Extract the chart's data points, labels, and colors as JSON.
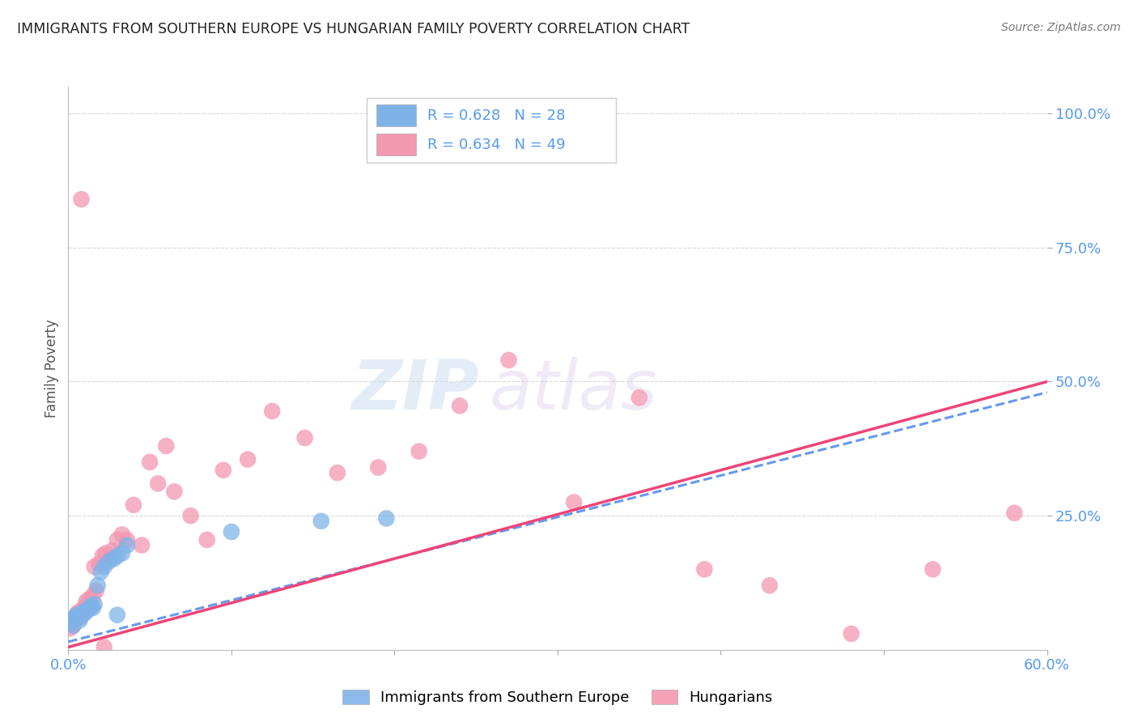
{
  "title": "IMMIGRANTS FROM SOUTHERN EUROPE VS HUNGARIAN FAMILY POVERTY CORRELATION CHART",
  "source": "Source: ZipAtlas.com",
  "ylabel": "Family Poverty",
  "ytick_labels": [
    "100.0%",
    "75.0%",
    "50.0%",
    "25.0%"
  ],
  "ytick_values": [
    1.0,
    0.75,
    0.5,
    0.25
  ],
  "xlim": [
    0.0,
    0.6
  ],
  "ylim": [
    0.0,
    1.05
  ],
  "legend_r_blue": "R = 0.628",
  "legend_n_blue": "N = 28",
  "legend_r_pink": "R = 0.634",
  "legend_n_pink": "N = 49",
  "legend_label_blue": "Immigrants from Southern Europe",
  "legend_label_pink": "Hungarians",
  "blue_color": "#7fb3e8",
  "pink_color": "#f497b0",
  "watermark_zip": "ZIP",
  "watermark_atlas": "atlas",
  "blue_scatter_x": [
    0.001,
    0.002,
    0.003,
    0.004,
    0.005,
    0.006,
    0.007,
    0.008,
    0.009,
    0.01,
    0.011,
    0.012,
    0.013,
    0.014,
    0.015,
    0.016,
    0.018,
    0.02,
    0.022,
    0.025,
    0.028,
    0.03,
    0.033,
    0.036,
    0.1,
    0.155,
    0.195,
    0.03
  ],
  "blue_scatter_y": [
    0.05,
    0.055,
    0.045,
    0.06,
    0.065,
    0.06,
    0.055,
    0.065,
    0.07,
    0.068,
    0.072,
    0.075,
    0.078,
    0.082,
    0.078,
    0.085,
    0.12,
    0.145,
    0.155,
    0.165,
    0.17,
    0.175,
    0.18,
    0.195,
    0.22,
    0.24,
    0.245,
    0.065
  ],
  "pink_scatter_x": [
    0.001,
    0.002,
    0.003,
    0.004,
    0.005,
    0.006,
    0.007,
    0.008,
    0.009,
    0.01,
    0.011,
    0.013,
    0.015,
    0.017,
    0.019,
    0.021,
    0.023,
    0.025,
    0.027,
    0.03,
    0.033,
    0.036,
    0.04,
    0.045,
    0.05,
    0.055,
    0.06,
    0.065,
    0.075,
    0.085,
    0.095,
    0.11,
    0.125,
    0.145,
    0.165,
    0.19,
    0.215,
    0.24,
    0.27,
    0.31,
    0.35,
    0.39,
    0.43,
    0.48,
    0.53,
    0.58,
    0.022,
    0.008,
    0.016
  ],
  "pink_scatter_y": [
    0.04,
    0.05,
    0.045,
    0.055,
    0.065,
    0.07,
    0.06,
    0.065,
    0.075,
    0.08,
    0.09,
    0.095,
    0.1,
    0.11,
    0.16,
    0.175,
    0.18,
    0.17,
    0.185,
    0.205,
    0.215,
    0.205,
    0.27,
    0.195,
    0.35,
    0.31,
    0.38,
    0.295,
    0.25,
    0.205,
    0.335,
    0.355,
    0.445,
    0.395,
    0.33,
    0.34,
    0.37,
    0.455,
    0.54,
    0.275,
    0.47,
    0.15,
    0.12,
    0.03,
    0.15,
    0.255,
    0.005,
    0.84,
    0.155
  ],
  "blue_line_x": [
    0.0,
    0.6
  ],
  "blue_line_y": [
    0.015,
    0.48
  ],
  "pink_line_x": [
    0.0,
    0.6
  ],
  "pink_line_y": [
    0.005,
    0.5
  ],
  "grid_color": "#d8d8d8",
  "background_color": "#ffffff",
  "title_color": "#222222",
  "tick_color": "#5599ee"
}
